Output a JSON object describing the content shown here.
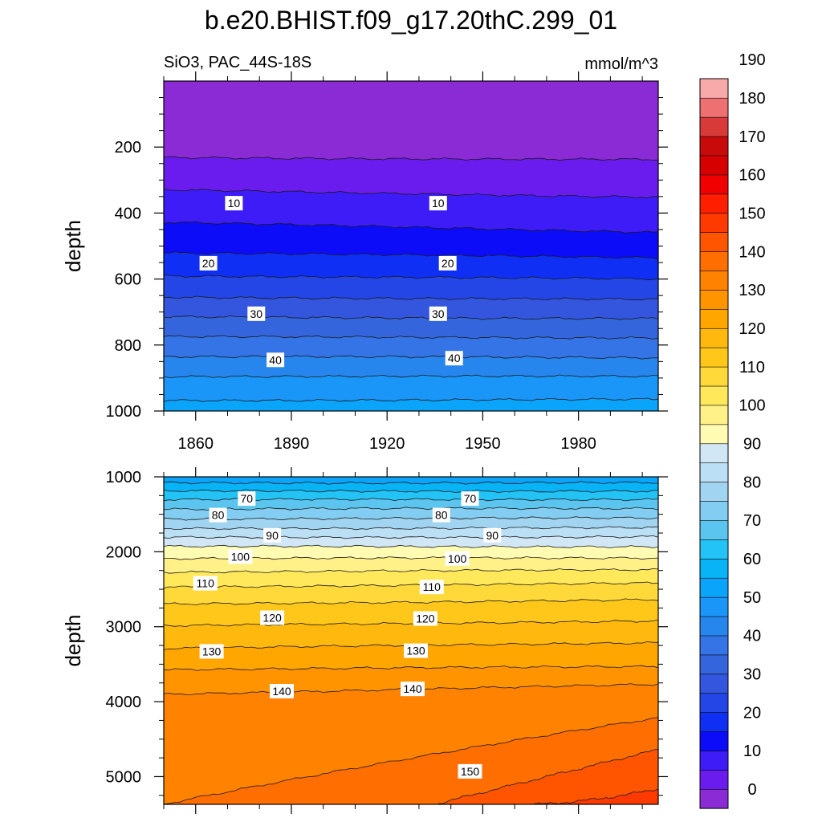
{
  "page_title": "b.e20.BHIST.f09_g17.20thC.299_01",
  "chart_data": {
    "type": "heatmap",
    "title": "b.e20.BHIST.f09_g17.20thC.299_01",
    "subtitle_left": "SiO3, PAC_44S-18S",
    "subtitle_right": "mmol/m^3",
    "xticks": [
      "1860",
      "1890",
      "1920",
      "1950",
      "1980"
    ],
    "xtick_values": [
      1860,
      1890,
      1920,
      1950,
      1980
    ],
    "xlim": [
      1850,
      2005
    ],
    "colorbar": {
      "levels_start": -5,
      "level_step": 5,
      "tick_values": [
        0,
        10,
        20,
        30,
        40,
        50,
        60,
        70,
        80,
        90,
        100,
        110,
        120,
        130,
        140,
        150,
        160,
        170,
        180,
        190
      ],
      "tick_labels": [
        "0",
        "10",
        "20",
        "30",
        "40",
        "50",
        "60",
        "70",
        "80",
        "90",
        "100",
        "110",
        "120",
        "130",
        "140",
        "150",
        "160",
        "170",
        "180",
        "190"
      ],
      "colors": [
        "#8a2bd6",
        "#6a1cee",
        "#3d1cf7",
        "#0d0cf9",
        "#102ff5",
        "#2446e6",
        "#3455dd",
        "#3565dd",
        "#3574e6",
        "#2786ed",
        "#1996f7",
        "#0aa4fa",
        "#08b4f5",
        "#23c3f5",
        "#5bc4ef",
        "#82cdf1",
        "#a0d4f0",
        "#bbdff4",
        "#d2e7f5",
        "#fffbb2",
        "#fff088",
        "#ffe85a",
        "#ffd93a",
        "#ffc71a",
        "#ffb80e",
        "#ffa600",
        "#ff9400",
        "#ff8200",
        "#ff6e00",
        "#ff5400",
        "#ff3a00",
        "#ff1e00",
        "#f00000",
        "#d60000",
        "#c80a0a",
        "#d83a3a",
        "#ee7070",
        "#f8aaaa"
      ]
    },
    "panels": [
      {
        "name": "upper",
        "ylabel": "depth",
        "ylim": [
          0,
          1000
        ],
        "yticks": [
          "200",
          "400",
          "600",
          "800",
          "1000"
        ],
        "ytick_values": [
          200,
          400,
          600,
          800,
          1000
        ],
        "xaxis_labels_shown": true,
        "contours": [
          {
            "level": 0,
            "depth_start": 232,
            "depth_end": 238
          },
          {
            "level": 5,
            "depth_start": 330,
            "depth_end": 352
          },
          {
            "level": 10,
            "depth_start": 428,
            "depth_end": 458
          },
          {
            "level": 15,
            "depth_start": 520,
            "depth_end": 535
          },
          {
            "level": 20,
            "depth_start": 590,
            "depth_end": 600
          },
          {
            "level": 25,
            "depth_start": 655,
            "depth_end": 662
          },
          {
            "level": 30,
            "depth_start": 715,
            "depth_end": 720
          },
          {
            "level": 35,
            "depth_start": 775,
            "depth_end": 778
          },
          {
            "level": 40,
            "depth_start": 835,
            "depth_end": 838
          },
          {
            "level": 45,
            "depth_start": 895,
            "depth_end": 895
          },
          {
            "level": 50,
            "depth_start": 968,
            "depth_end": 965
          }
        ],
        "labels": [
          {
            "text": "10",
            "x": 1872,
            "depth": 370
          },
          {
            "text": "10",
            "x": 1936,
            "depth": 370
          },
          {
            "text": "20",
            "x": 1864,
            "depth": 552
          },
          {
            "text": "20",
            "x": 1939,
            "depth": 552
          },
          {
            "text": "30",
            "x": 1879,
            "depth": 705
          },
          {
            "text": "30",
            "x": 1936,
            "depth": 705
          },
          {
            "text": "40",
            "x": 1885,
            "depth": 845
          },
          {
            "text": "40",
            "x": 1941,
            "depth": 840
          }
        ]
      },
      {
        "name": "lower",
        "ylabel": "depth",
        "ylim": [
          1000,
          5370
        ],
        "yticks": [
          "1000",
          "2000",
          "3000",
          "4000",
          "5000"
        ],
        "ytick_values": [
          1000,
          2000,
          3000,
          4000,
          5000
        ],
        "xaxis_labels_shown": false,
        "contours": [
          {
            "level": 55,
            "depth_start": 1080,
            "depth_end": 1080
          },
          {
            "level": 60,
            "depth_start": 1190,
            "depth_end": 1190
          },
          {
            "level": 65,
            "depth_start": 1305,
            "depth_end": 1300
          },
          {
            "level": 70,
            "depth_start": 1430,
            "depth_end": 1420
          },
          {
            "level": 75,
            "depth_start": 1560,
            "depth_end": 1550
          },
          {
            "level": 80,
            "depth_start": 1690,
            "depth_end": 1680
          },
          {
            "level": 85,
            "depth_start": 1810,
            "depth_end": 1800
          },
          {
            "level": 90,
            "depth_start": 1930,
            "depth_end": 1930
          },
          {
            "level": 95,
            "depth_start": 2090,
            "depth_end": 2080
          },
          {
            "level": 100,
            "depth_start": 2270,
            "depth_end": 2240
          },
          {
            "level": 105,
            "depth_start": 2470,
            "depth_end": 2420
          },
          {
            "level": 110,
            "depth_start": 2700,
            "depth_end": 2640
          },
          {
            "level": 115,
            "depth_start": 2990,
            "depth_end": 2920
          },
          {
            "level": 120,
            "depth_start": 3290,
            "depth_end": 3210
          },
          {
            "level": 125,
            "depth_start": 3570,
            "depth_end": 3530
          },
          {
            "level": 130,
            "depth_start": 3900,
            "depth_end": 3770
          },
          {
            "level": 135,
            "depth_start": 5370,
            "depth_end": 4220,
            "depth_mid": 4750
          },
          {
            "level": 140,
            "depth_start": 5370,
            "depth_end": 4640,
            "x_start": 1935,
            "depth_mid": 5000
          },
          {
            "level": 145,
            "depth_start": 5370,
            "depth_end": 5160,
            "x_start": 1966,
            "depth_mid": 5300
          }
        ],
        "labels": [
          {
            "text": "70",
            "x": 1876,
            "depth": 1290
          },
          {
            "text": "70",
            "x": 1946,
            "depth": 1290
          },
          {
            "text": "80",
            "x": 1867,
            "depth": 1510
          },
          {
            "text": "80",
            "x": 1937,
            "depth": 1510
          },
          {
            "text": "90",
            "x": 1884,
            "depth": 1780
          },
          {
            "text": "90",
            "x": 1953,
            "depth": 1780
          },
          {
            "text": "100",
            "x": 1874,
            "depth": 2065
          },
          {
            "text": "100",
            "x": 1942,
            "depth": 2090
          },
          {
            "text": "110",
            "x": 1863,
            "depth": 2420
          },
          {
            "text": "110",
            "x": 1934,
            "depth": 2470
          },
          {
            "text": "120",
            "x": 1884,
            "depth": 2880
          },
          {
            "text": "120",
            "x": 1932,
            "depth": 2890
          },
          {
            "text": "130",
            "x": 1865,
            "depth": 3330
          },
          {
            "text": "130",
            "x": 1929,
            "depth": 3320
          },
          {
            "text": "140",
            "x": 1887,
            "depth": 3860
          },
          {
            "text": "140",
            "x": 1928,
            "depth": 3830
          },
          {
            "text": "150",
            "x": 1946,
            "depth": 4930
          }
        ]
      }
    ]
  }
}
